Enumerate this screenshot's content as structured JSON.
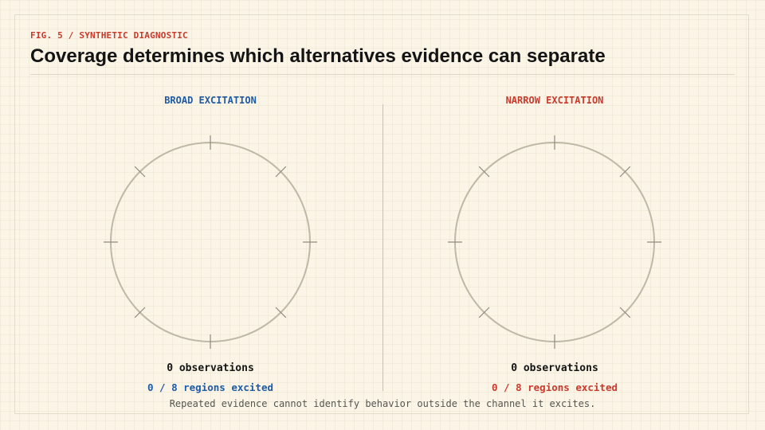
{
  "figure": {
    "eyebrow": "FIG. 5 / SYNTHETIC DIAGNOSTIC",
    "title": "Coverage determines which alternatives evidence can separate",
    "caption": "Repeated evidence cannot identify behavior outside the channel it excites."
  },
  "panels": [
    {
      "title": "BROAD EXCITATION",
      "accent": "#1f5aa3",
      "observations_label": "0 observations",
      "regions_label": "0 / 8 regions excited",
      "observations": 0,
      "regions_excited": 0,
      "regions_total": 8
    },
    {
      "title": "NARROW EXCITATION",
      "accent": "#c83a2c",
      "observations_label": "0 observations",
      "regions_label": "0 / 8 regions excited",
      "observations": 0,
      "regions_excited": 0,
      "regions_total": 8
    }
  ],
  "colors": {
    "background": "#fbf5e8",
    "ring": "#bdb9a6",
    "tick": "#8f8b80",
    "text": "#141414"
  }
}
